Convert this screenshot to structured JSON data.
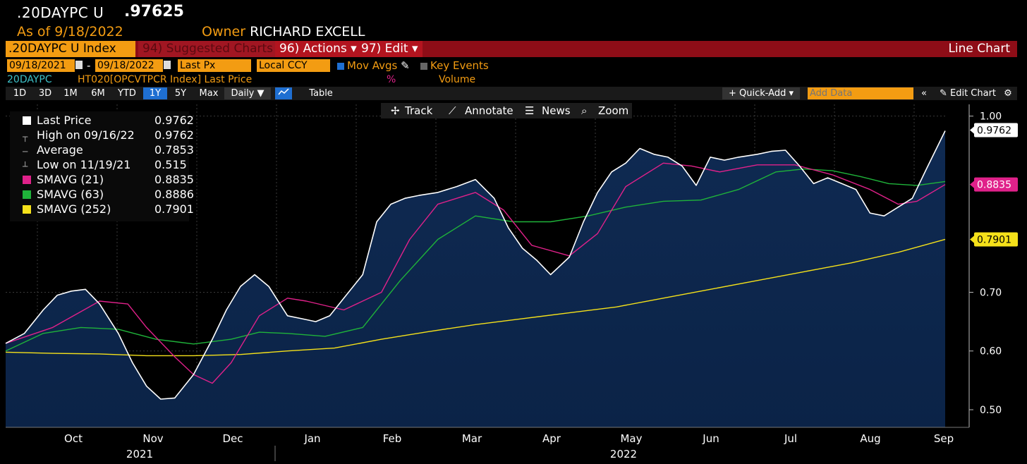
{
  "header": {
    "ticker": ".20DAYPC U",
    "price": ".97625",
    "as_of": "As of 9/18/2022",
    "owner_label": "Owner",
    "owner_name": "RICHARD EXCELL"
  },
  "toolbar": {
    "index": ".20DAYPC U Index",
    "suggested": "94) Suggested Charts",
    "actions": "96) Actions ▾",
    "edit": "97) Edit ▾",
    "chart_type": "Line Chart"
  },
  "controls": {
    "start_date": "09/18/2021",
    "dash": "-",
    "end_date": "09/18/2022",
    "field": "Last Px",
    "currency": "Local CCY",
    "mov_avgs": "Mov Avgs",
    "key_events": "Key Events",
    "series_code": "20DAYPC",
    "series_desc": "HT020[OPCVTPCR Index] Last Price",
    "percent": "%",
    "volume": "Volume"
  },
  "periods": [
    "1D",
    "3D",
    "1M",
    "6M",
    "YTD",
    "1Y",
    "5Y",
    "Max",
    "Daily ▼"
  ],
  "selected_period": "1Y",
  "right_tools": {
    "table": "Table",
    "quick_add": "+ Quick-Add ▾",
    "add_data_placeholder": "Add Data",
    "edit_chart": "✎ Edit Chart"
  },
  "chart_tools": [
    "Track",
    "Annotate",
    "News",
    "Zoom"
  ],
  "legend": [
    {
      "label": "Last Price",
      "value": "0.9762",
      "color": "#ffffff"
    },
    {
      "label": "High on 09/16/22",
      "value": "0.9762",
      "color": ""
    },
    {
      "label": "Average",
      "value": "0.7853",
      "color": ""
    },
    {
      "label": "Low on 11/19/21",
      "value": "0.515",
      "color": ""
    },
    {
      "label": "SMAVG (21)",
      "value": "0.8835",
      "color": "#e0218a"
    },
    {
      "label": "SMAVG (63)",
      "value": "0.8886",
      "color": "#1fb33a"
    },
    {
      "label": "SMAVG (252)",
      "value": "0.7901",
      "color": "#f5e11a"
    }
  ],
  "chart_data": {
    "type": "line",
    "ylim": [
      0.47,
      1.02
    ],
    "y_ticks": [
      "1.00",
      "0.70",
      "0.60",
      "0.50"
    ],
    "x_month_labels": [
      "Oct",
      "Nov",
      "Dec",
      "Jan",
      "Feb",
      "Mar",
      "Apr",
      "May",
      "Jun",
      "Jul",
      "Aug",
      "Sep"
    ],
    "x_year_labels": [
      "2021",
      "2022"
    ],
    "price_labels": [
      {
        "text": "0.9762",
        "value": 0.9762,
        "bg": "#ffffff",
        "fg": "#000000"
      },
      {
        "text": "0.8835",
        "value": 0.8835,
        "bg": "#e0218a",
        "fg": "#ffffff"
      },
      {
        "text": "0.7901",
        "value": 0.7901,
        "bg": "#f5e11a",
        "fg": "#000000"
      }
    ],
    "series": [
      {
        "name": "Last Price",
        "color": "#ffffff",
        "x": [
          0,
          0.02,
          0.04,
          0.055,
          0.07,
          0.085,
          0.1,
          0.12,
          0.135,
          0.15,
          0.165,
          0.18,
          0.2,
          0.22,
          0.235,
          0.25,
          0.265,
          0.28,
          0.3,
          0.315,
          0.33,
          0.345,
          0.36,
          0.38,
          0.395,
          0.41,
          0.425,
          0.44,
          0.46,
          0.48,
          0.5,
          0.52,
          0.535,
          0.55,
          0.565,
          0.58,
          0.6,
          0.615,
          0.63,
          0.645,
          0.66,
          0.675,
          0.69,
          0.705,
          0.72,
          0.735,
          0.75,
          0.765,
          0.78,
          0.8,
          0.815,
          0.83,
          0.845,
          0.86,
          0.875,
          0.89,
          0.905,
          0.92,
          0.935,
          0.95,
          0.965,
          0.98,
          1.0
        ],
        "y": [
          0.613,
          0.63,
          0.67,
          0.695,
          0.702,
          0.705,
          0.68,
          0.63,
          0.58,
          0.54,
          0.518,
          0.52,
          0.56,
          0.62,
          0.67,
          0.71,
          0.73,
          0.71,
          0.66,
          0.655,
          0.65,
          0.66,
          0.69,
          0.73,
          0.82,
          0.85,
          0.86,
          0.865,
          0.87,
          0.88,
          0.892,
          0.86,
          0.81,
          0.775,
          0.755,
          0.73,
          0.76,
          0.82,
          0.87,
          0.905,
          0.92,
          0.945,
          0.935,
          0.93,
          0.915,
          0.882,
          0.93,
          0.925,
          0.93,
          0.935,
          0.94,
          0.942,
          0.915,
          0.885,
          0.895,
          0.885,
          0.875,
          0.835,
          0.83,
          0.845,
          0.86,
          0.91,
          0.975
        ]
      },
      {
        "name": "SMAVG (21)",
        "color": "#e0218a",
        "x": [
          0,
          0.05,
          0.1,
          0.13,
          0.15,
          0.18,
          0.2,
          0.22,
          0.24,
          0.27,
          0.3,
          0.32,
          0.36,
          0.4,
          0.43,
          0.46,
          0.5,
          0.53,
          0.56,
          0.6,
          0.63,
          0.66,
          0.7,
          0.73,
          0.76,
          0.8,
          0.84,
          0.88,
          0.92,
          0.95,
          0.97,
          1.0
        ],
        "y": [
          0.613,
          0.64,
          0.685,
          0.68,
          0.64,
          0.59,
          0.56,
          0.545,
          0.58,
          0.66,
          0.69,
          0.685,
          0.67,
          0.7,
          0.79,
          0.85,
          0.87,
          0.84,
          0.78,
          0.762,
          0.8,
          0.88,
          0.92,
          0.915,
          0.905,
          0.917,
          0.917,
          0.9,
          0.875,
          0.85,
          0.855,
          0.8835
        ]
      },
      {
        "name": "SMAVG (63)",
        "color": "#1fb33a",
        "x": [
          0,
          0.04,
          0.08,
          0.12,
          0.16,
          0.2,
          0.24,
          0.27,
          0.3,
          0.34,
          0.38,
          0.42,
          0.46,
          0.5,
          0.54,
          0.58,
          0.62,
          0.66,
          0.7,
          0.74,
          0.78,
          0.82,
          0.85,
          0.88,
          0.91,
          0.94,
          0.97,
          1.0
        ],
        "y": [
          0.6,
          0.63,
          0.64,
          0.637,
          0.62,
          0.612,
          0.62,
          0.632,
          0.63,
          0.625,
          0.64,
          0.72,
          0.79,
          0.83,
          0.82,
          0.82,
          0.83,
          0.845,
          0.855,
          0.857,
          0.875,
          0.905,
          0.91,
          0.907,
          0.897,
          0.885,
          0.882,
          0.8886
        ]
      },
      {
        "name": "SMAVG (252)",
        "color": "#f5e11a",
        "x": [
          0,
          0.05,
          0.1,
          0.15,
          0.2,
          0.25,
          0.3,
          0.35,
          0.4,
          0.45,
          0.5,
          0.55,
          0.6,
          0.65,
          0.7,
          0.75,
          0.8,
          0.85,
          0.9,
          0.95,
          1.0
        ],
        "y": [
          0.598,
          0.596,
          0.595,
          0.592,
          0.592,
          0.594,
          0.6,
          0.605,
          0.62,
          0.633,
          0.645,
          0.655,
          0.665,
          0.675,
          0.69,
          0.705,
          0.72,
          0.735,
          0.75,
          0.768,
          0.7901
        ]
      }
    ]
  }
}
